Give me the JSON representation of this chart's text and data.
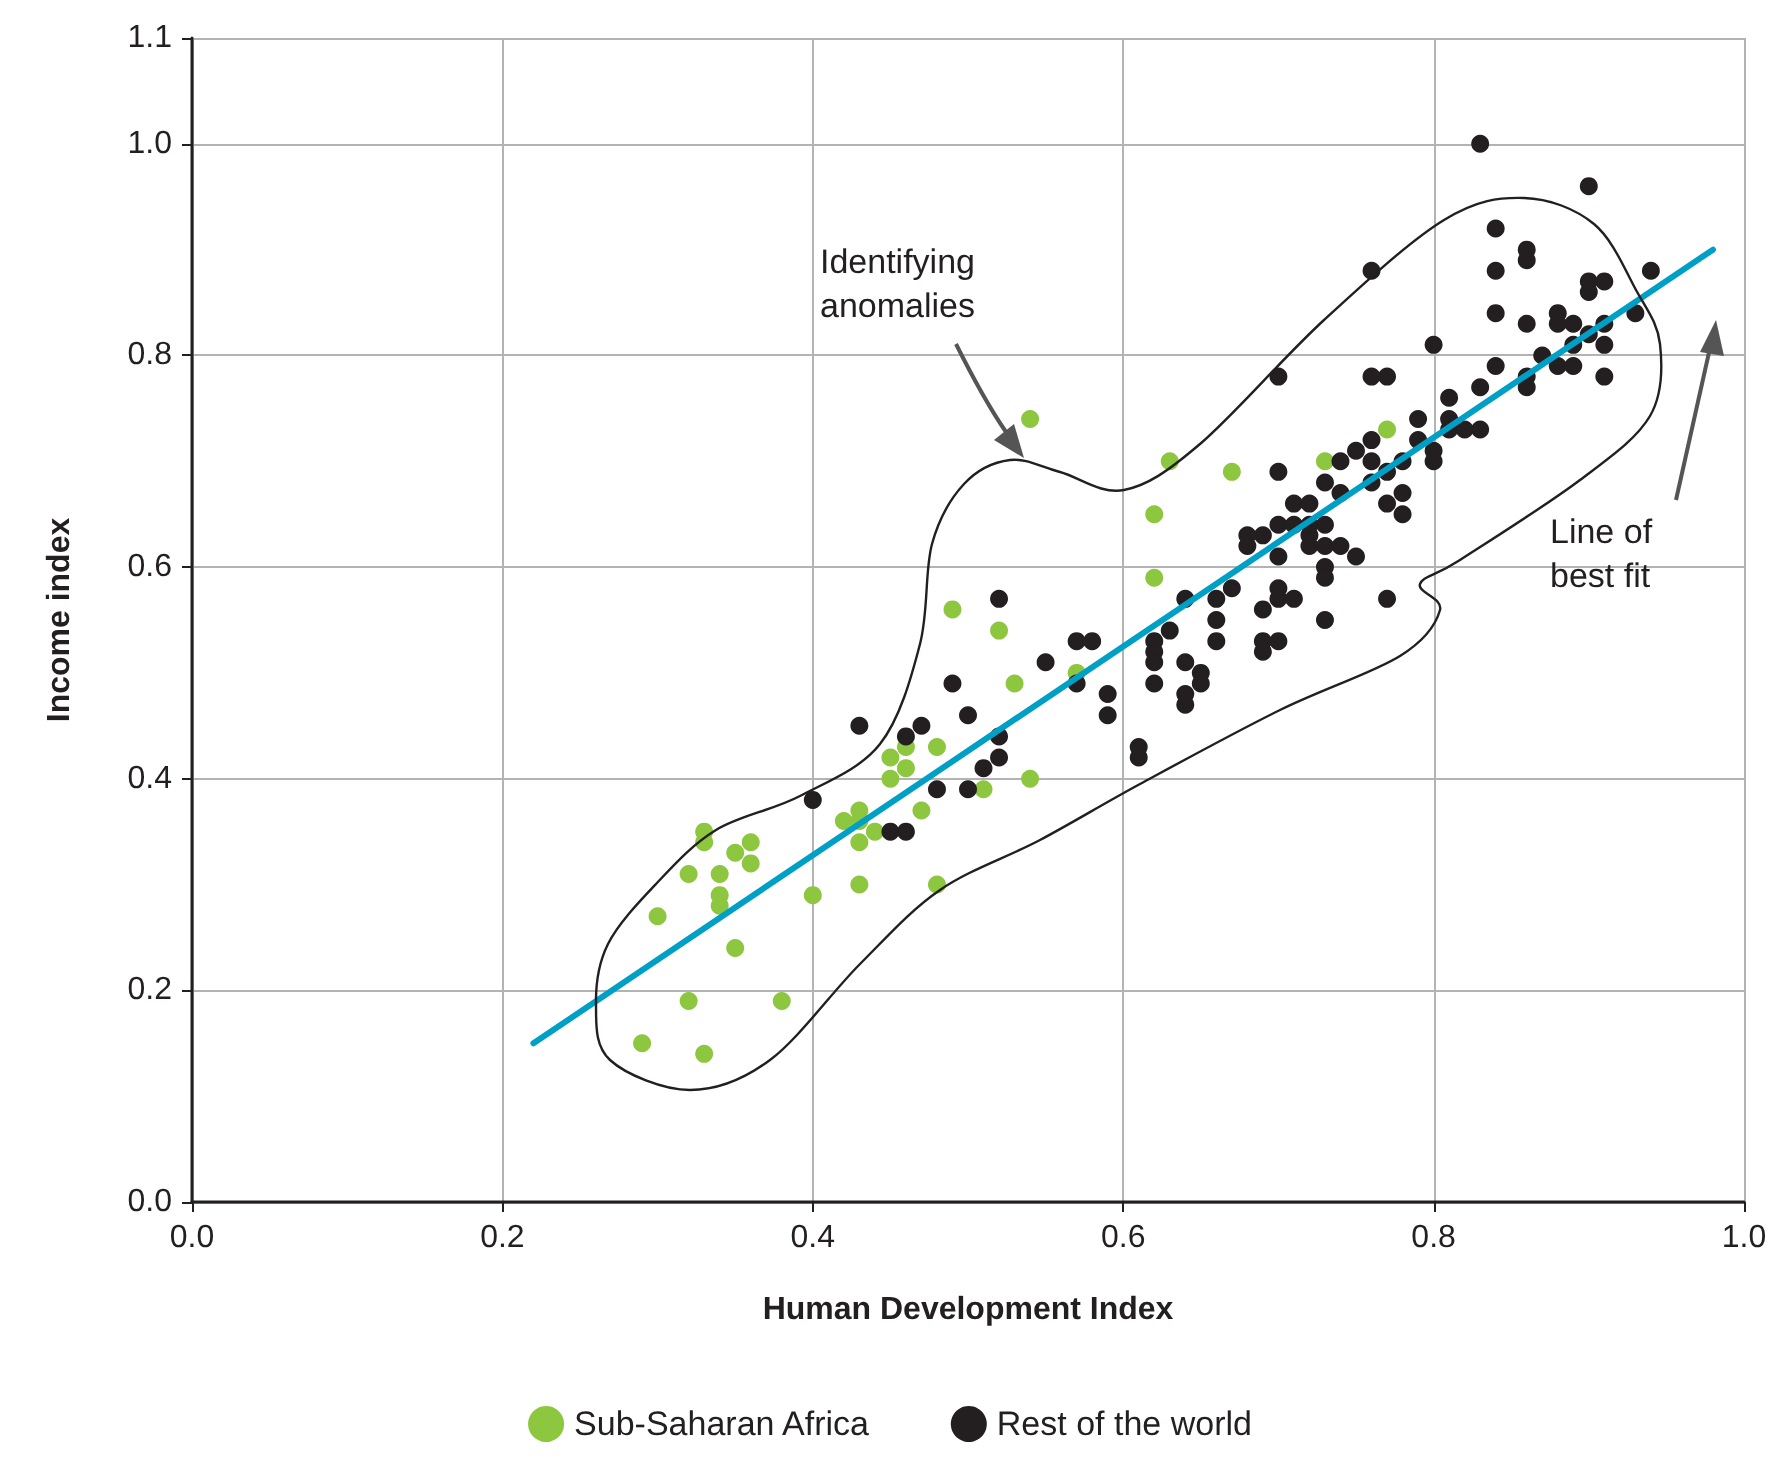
{
  "chart_data": {
    "type": "scatter",
    "xlabel": "Human Development Index",
    "ylabel": "Income index",
    "annotations": [
      "Identifying anomalies",
      "Line of best fit"
    ],
    "xlim": [
      0,
      1
    ],
    "xticks": [
      {
        "value": 0,
        "label": "0.0"
      },
      {
        "value": 0.2,
        "label": "0.2"
      },
      {
        "value": 0.4,
        "label": "0.4"
      },
      {
        "value": 0.6,
        "label": "0.6"
      },
      {
        "value": 0.8,
        "label": "0.8"
      },
      {
        "value": 1,
        "label": "1.0"
      }
    ],
    "ylim": [
      0,
      1.1
    ],
    "yticks": [
      {
        "value": 0,
        "label": "0.0"
      },
      {
        "value": 0.2,
        "label": "0.2"
      },
      {
        "value": 0.4,
        "label": "0.4"
      },
      {
        "value": 0.6,
        "label": "0.6"
      },
      {
        "value": 0.8,
        "label": "0.8"
      },
      {
        "value": 1,
        "label": "1.0"
      },
      1.1
    ],
    "grid": true,
    "legend": "bottom",
    "marker": "circle",
    "series": [
      {
        "name": "Sub-Saharan Africa",
        "color": "#8dc63f",
        "x": [
          0.3,
          0.29,
          0.32,
          0.33,
          0.38,
          0.35,
          0.32,
          0.33,
          0.33,
          0.34,
          0.34,
          0.34,
          0.35,
          0.36,
          0.36,
          0.4,
          0.42,
          0.43,
          0.43,
          0.43,
          0.43,
          0.44,
          0.45,
          0.45,
          0.46,
          0.46,
          0.47,
          0.48,
          0.48,
          0.51,
          0.49,
          0.52,
          0.53,
          0.54,
          0.57,
          0.54,
          0.63,
          0.67,
          0.62,
          0.62,
          0.73,
          0.77
        ],
        "values": [
          0.27,
          0.15,
          0.19,
          0.14,
          0.19,
          0.24,
          0.31,
          0.34,
          0.35,
          0.31,
          0.29,
          0.28,
          0.33,
          0.34,
          0.32,
          0.29,
          0.36,
          0.37,
          0.36,
          0.34,
          0.3,
          0.35,
          0.4,
          0.42,
          0.41,
          0.43,
          0.37,
          0.43,
          0.3,
          0.39,
          0.56,
          0.54,
          0.49,
          0.4,
          0.5,
          0.74,
          0.7,
          0.69,
          0.65,
          0.59,
          0.7,
          0.73
        ]
      },
      {
        "name": "Rest of the world",
        "color": "#231f20",
        "x": [
          0.4,
          0.43,
          0.46,
          0.47,
          0.49,
          0.5,
          0.52,
          0.55,
          0.57,
          0.58,
          0.57,
          0.59,
          0.59,
          0.52,
          0.52,
          0.51,
          0.48,
          0.5,
          0.45,
          0.46,
          0.7,
          0.61,
          0.61,
          0.62,
          0.62,
          0.62,
          0.62,
          0.63,
          0.64,
          0.64,
          0.64,
          0.65,
          0.65,
          0.64,
          0.66,
          0.66,
          0.66,
          0.67,
          0.69,
          0.69,
          0.69,
          0.7,
          0.7,
          0.7,
          0.71,
          0.73,
          0.77,
          0.68,
          0.68,
          0.69,
          0.7,
          0.7,
          0.71,
          0.72,
          0.7,
          0.71,
          0.72,
          0.72,
          0.72,
          0.73,
          0.73,
          0.74,
          0.73,
          0.73,
          0.75,
          0.73,
          0.74,
          0.74,
          0.75,
          0.76,
          0.76,
          0.76,
          0.77,
          0.77,
          0.78,
          0.78,
          0.78,
          0.79,
          0.79,
          0.8,
          0.8,
          0.81,
          0.81,
          0.81,
          0.76,
          0.77,
          0.83,
          0.9,
          0.76,
          0.84,
          0.86,
          0.86,
          0.84,
          0.84,
          0.94,
          0.9,
          0.91,
          0.9,
          0.86,
          0.88,
          0.88,
          0.89,
          0.91,
          0.9,
          0.89,
          0.91,
          0.93,
          0.8,
          0.84,
          0.87,
          0.88,
          0.89,
          0.91,
          0.86,
          0.86,
          0.83,
          0.83,
          0.82
        ],
        "values": [
          0.38,
          0.45,
          0.44,
          0.45,
          0.49,
          0.46,
          0.57,
          0.51,
          0.53,
          0.53,
          0.49,
          0.48,
          0.46,
          0.44,
          0.42,
          0.41,
          0.39,
          0.39,
          0.35,
          0.35,
          0.78,
          0.42,
          0.43,
          0.53,
          0.52,
          0.51,
          0.49,
          0.54,
          0.48,
          0.47,
          0.51,
          0.49,
          0.5,
          0.57,
          0.57,
          0.55,
          0.53,
          0.58,
          0.53,
          0.52,
          0.56,
          0.57,
          0.58,
          0.53,
          0.57,
          0.55,
          0.57,
          0.62,
          0.63,
          0.63,
          0.61,
          0.64,
          0.66,
          0.66,
          0.69,
          0.64,
          0.63,
          0.64,
          0.62,
          0.64,
          0.62,
          0.62,
          0.6,
          0.59,
          0.61,
          0.68,
          0.7,
          0.67,
          0.71,
          0.7,
          0.72,
          0.68,
          0.66,
          0.69,
          0.67,
          0.65,
          0.7,
          0.74,
          0.72,
          0.71,
          0.7,
          0.76,
          0.73,
          0.74,
          0.78,
          0.78,
          1.0,
          0.96,
          0.88,
          0.92,
          0.9,
          0.89,
          0.88,
          0.84,
          0.88,
          0.87,
          0.87,
          0.86,
          0.83,
          0.84,
          0.83,
          0.83,
          0.83,
          0.82,
          0.81,
          0.81,
          0.84,
          0.81,
          0.79,
          0.8,
          0.79,
          0.79,
          0.78,
          0.78,
          0.77,
          0.77,
          0.73,
          0.73
        ]
      },
      {
        "type": "line",
        "marker": "none",
        "color": "#00a0c6",
        "x": [
          0.22,
          0.98
        ],
        "values": [
          0.15,
          0.9
        ]
      }
    ]
  }
}
